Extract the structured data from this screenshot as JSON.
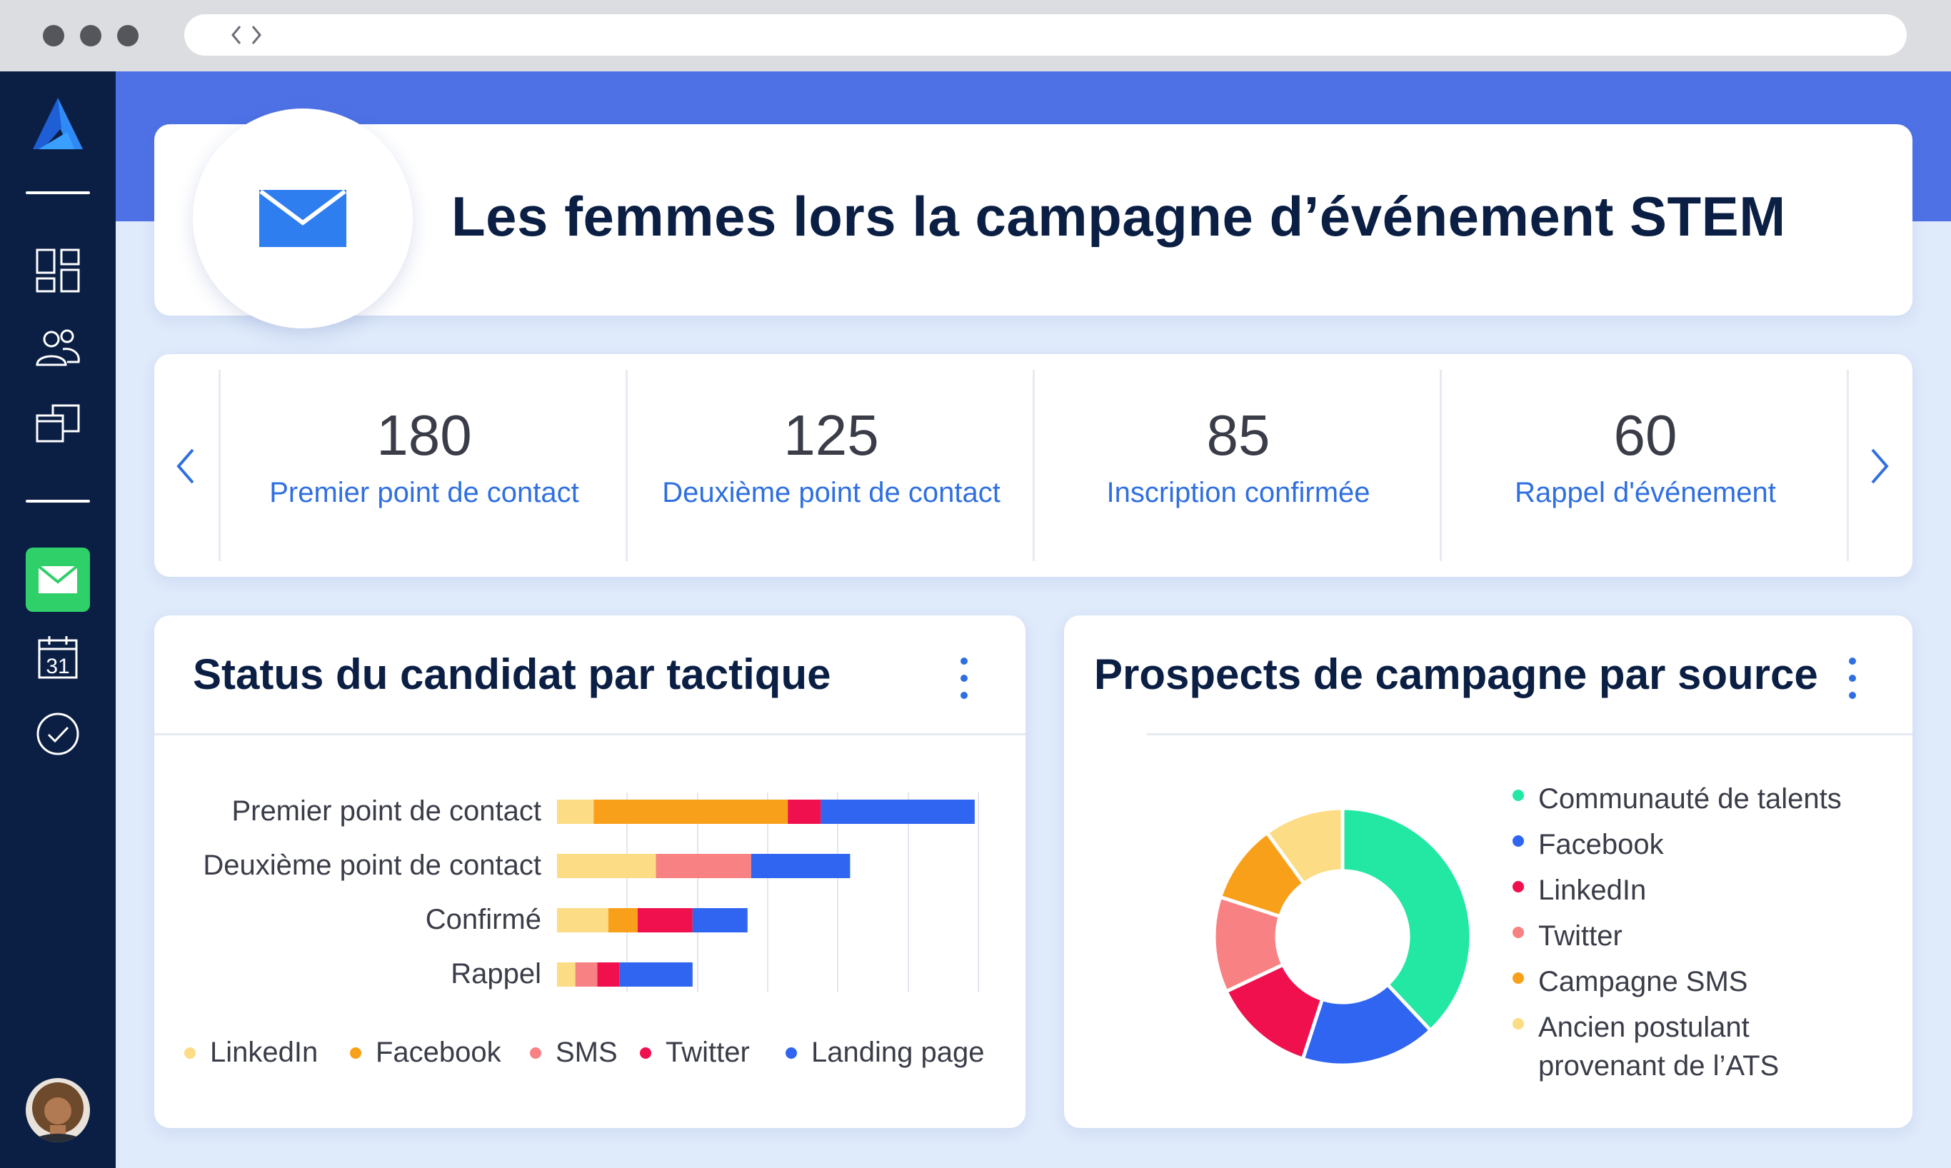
{
  "header": {
    "title": "Les femmes lors la campagne d’événement STEM",
    "icon": "mail-icon"
  },
  "sidebar": {
    "items": [
      {
        "name": "logo",
        "icon": "logo-icon"
      },
      {
        "name": "dashboard",
        "icon": "dashboard-grid-icon"
      },
      {
        "name": "people",
        "icon": "people-icon"
      },
      {
        "name": "folders",
        "icon": "folders-icon"
      },
      {
        "name": "campaigns",
        "icon": "mail-icon",
        "active": true
      },
      {
        "name": "calendar",
        "icon": "calendar-icon",
        "text": "31"
      },
      {
        "name": "tasks",
        "icon": "check-circle-icon"
      }
    ],
    "active_color": "#2fcf6a"
  },
  "stats": [
    {
      "value": "180",
      "label": "Premier point de contact"
    },
    {
      "value": "125",
      "label": "Deuxième point de contact"
    },
    {
      "value": "85",
      "label": "Inscription confirmée"
    },
    {
      "value": "60",
      "label": "Rappel d'événement"
    }
  ],
  "status_card": {
    "title": "Status du candidat par tactique"
  },
  "source_card": {
    "title": "Prospects de campagne par source"
  },
  "chart_data": [
    {
      "type": "bar",
      "orientation": "horizontal",
      "stacked": true,
      "title": "Status du candidat par tactique",
      "categories": [
        "Premier point de contact",
        "Deuxième point de contact",
        "Confirmé",
        "Rappel"
      ],
      "series": [
        {
          "name": "LinkedIn",
          "color": "#fcdc84",
          "values": [
            10,
            27,
            14,
            5
          ]
        },
        {
          "name": "Facebook",
          "color": "#f9a01b",
          "values": [
            53,
            0,
            8,
            0
          ]
        },
        {
          "name": "SMS",
          "color": "#f88283",
          "values": [
            0,
            26,
            0,
            6
          ]
        },
        {
          "name": "Twitter",
          "color": "#f0104e",
          "values": [
            9,
            0,
            15,
            6
          ]
        },
        {
          "name": "Landing page",
          "color": "#2f65f0",
          "values": [
            42,
            27,
            15,
            20
          ]
        }
      ],
      "xlim": [
        0,
        115
      ],
      "grid": true,
      "legend": "bottom"
    },
    {
      "type": "pie",
      "donut": true,
      "title": "Prospects de campagne par source",
      "series": [
        {
          "name": "Communauté de talents",
          "color": "#23e8a4",
          "value": 38
        },
        {
          "name": "Facebook",
          "color": "#2f65f0",
          "value": 17
        },
        {
          "name": "LinkedIn",
          "color": "#f0104e",
          "value": 13
        },
        {
          "name": "Twitter",
          "color": "#f88283",
          "value": 12
        },
        {
          "name": "Campagne SMS",
          "color": "#f9a01b",
          "value": 10
        },
        {
          "name": "Ancien postulant provenant de l’ATS",
          "color": "#fcdc84",
          "value": 10
        }
      ],
      "legend": "right"
    }
  ]
}
